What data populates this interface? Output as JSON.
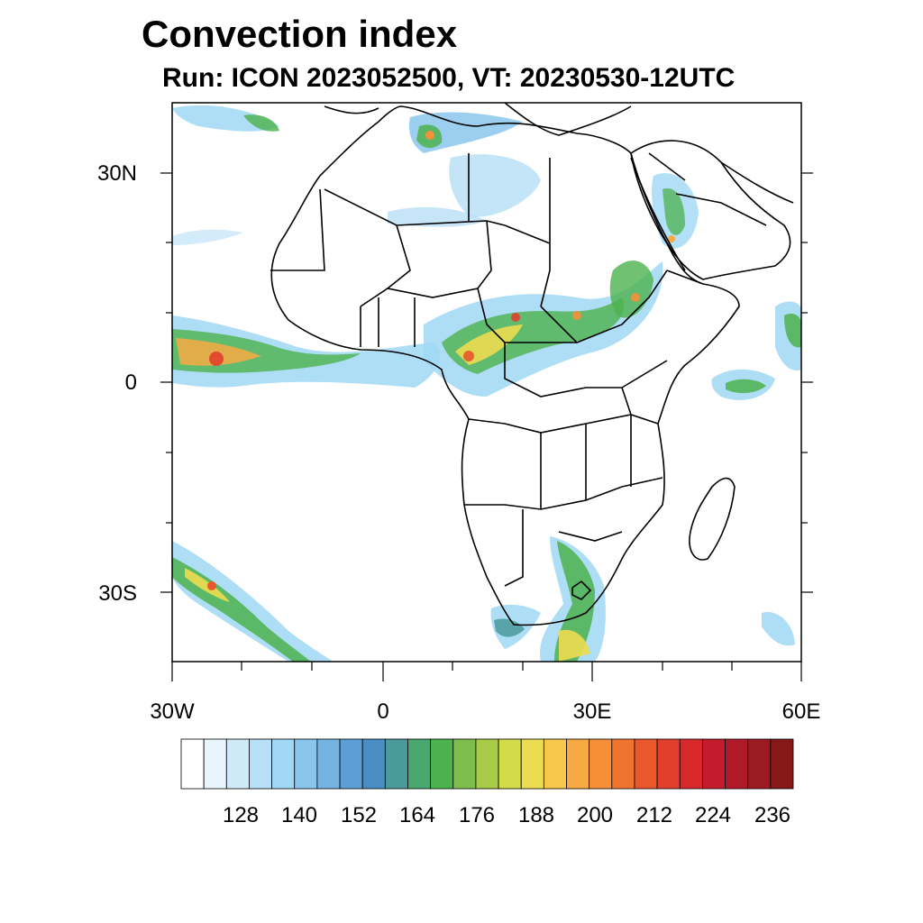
{
  "title": "Convection index",
  "subtitle": "Run: ICON 2023052500,  VT: 20230530-12UTC",
  "map": {
    "projection": "cylindrical equidistant",
    "lon_range": [
      -30,
      60
    ],
    "lat_range": [
      -40,
      40
    ],
    "lat_labels": [
      "30N",
      "0",
      "30S"
    ],
    "lon_labels": [
      "30W",
      "0",
      "30E",
      "60E"
    ],
    "region": "Africa and Arabian Peninsula"
  },
  "colorbar": {
    "colors": [
      "#ffffff",
      "#e8f5fc",
      "#cfe9f8",
      "#b8e0f6",
      "#a0d8f5",
      "#8ac6ec",
      "#74b4e3",
      "#5c9ed6",
      "#4a8ec4",
      "#4a9a9a",
      "#48a870",
      "#4cb24e",
      "#7ebe4c",
      "#a8cc48",
      "#d2dc48",
      "#ecdc50",
      "#f8c84c",
      "#f7aa44",
      "#f69038",
      "#ee7430",
      "#e8582c",
      "#e2402c",
      "#d8282c",
      "#c41c2c",
      "#b01a28",
      "#9c1a22",
      "#861818"
    ],
    "tick_labels": [
      "128",
      "140",
      "152",
      "164",
      "176",
      "188",
      "200",
      "212",
      "224",
      "236"
    ]
  }
}
